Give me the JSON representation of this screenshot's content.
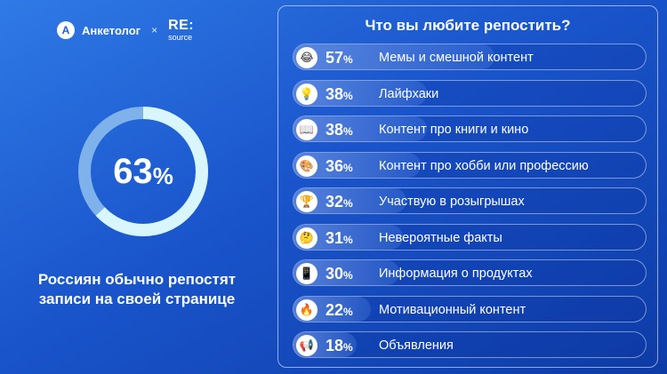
{
  "header": {
    "brand_1": "Анкетолог",
    "brand_1_initial": "A",
    "separator": "×",
    "brand_2_top": "RE:",
    "brand_2_bottom": "source"
  },
  "donut": {
    "value": 63,
    "value_text": "63",
    "unit": "%",
    "colors": {
      "track": "#7fb2ea",
      "progress": "#d8f6fb"
    }
  },
  "caption": {
    "line1": "Россиян обычно репостят",
    "line2": "записи на своей странице"
  },
  "chart_data": {
    "type": "bar",
    "title": "Что вы любите репостить?",
    "unit": "%",
    "xlim": [
      0,
      100
    ],
    "categories": [
      "Мемы и смешной контент",
      "Лайфхаки",
      "Контент про книги и кино",
      "Контент про хобби или профессию",
      "Участвую в розыгрышах",
      "Невероятные факты",
      "Информация о продуктах",
      "Мотивационный контент",
      "Объявления"
    ],
    "values": [
      57,
      38,
      38,
      36,
      32,
      31,
      30,
      22,
      18
    ],
    "value_labels": [
      "57",
      "38",
      "38",
      "36",
      "32",
      "31",
      "30",
      "22",
      "18"
    ],
    "icons": [
      "laughing-face-icon",
      "lightbulb-icon",
      "book-icon",
      "palette-icon",
      "trophy-icon",
      "thinking-face-icon",
      "smartphone-icon",
      "fire-icon",
      "megaphone-icon"
    ],
    "icon_glyphs": [
      "😂",
      "💡",
      "📖",
      "🎨",
      "🏆",
      "🤔",
      "📱",
      "🔥",
      "📢"
    ]
  },
  "colors": {
    "background_start": "#2f7ae6",
    "background_end": "#0d3ba6",
    "text": "#ffffff"
  }
}
